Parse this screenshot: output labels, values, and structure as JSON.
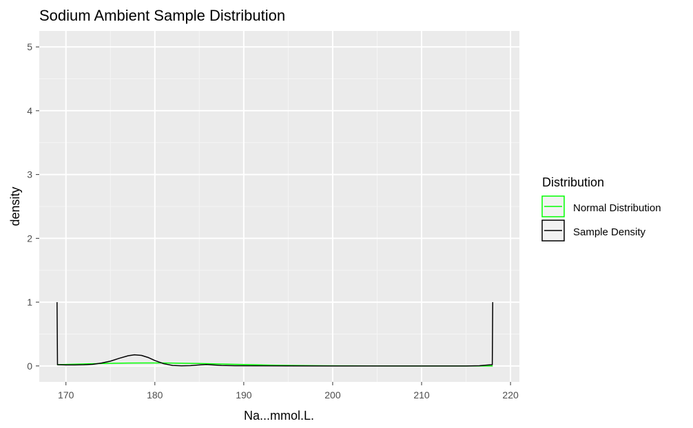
{
  "chart_data": {
    "type": "line",
    "title": "Sodium Ambient Sample Distribution",
    "xlabel": "Na...mmol.L.",
    "ylabel": "density",
    "xlim": [
      167,
      221
    ],
    "ylim": [
      -0.25,
      5.25
    ],
    "x_ticks": [
      170,
      180,
      190,
      200,
      210,
      220
    ],
    "y_ticks": [
      0,
      1,
      2,
      3,
      4,
      5
    ],
    "grid": true,
    "background": "#ebebeb",
    "legend": {
      "title": "Distribution",
      "position": "right",
      "entries": [
        {
          "label": "Normal Distribution",
          "color": "#00ff00"
        },
        {
          "label": "Sample Density",
          "color": "#000000"
        }
      ]
    },
    "series": [
      {
        "name": "Normal Distribution",
        "color": "#00ff00",
        "points": [
          [
            169.0,
            0.02
          ],
          [
            171.0,
            0.028
          ],
          [
            173.0,
            0.035
          ],
          [
            175.0,
            0.041
          ],
          [
            177.0,
            0.045
          ],
          [
            179.0,
            0.047
          ],
          [
            181.0,
            0.046
          ],
          [
            183.0,
            0.043
          ],
          [
            185.0,
            0.038
          ],
          [
            187.0,
            0.032
          ],
          [
            189.0,
            0.025
          ],
          [
            191.0,
            0.019
          ],
          [
            193.0,
            0.013
          ],
          [
            195.0,
            0.009
          ],
          [
            197.0,
            0.006
          ],
          [
            199.0,
            0.003
          ],
          [
            201.0,
            0.002
          ],
          [
            204.0,
            0.001
          ],
          [
            208.0,
            0.0
          ],
          [
            218.0,
            0.0
          ]
        ]
      },
      {
        "name": "Sample Density",
        "color": "#000000",
        "points": [
          [
            169.0,
            1.0
          ],
          [
            169.05,
            0.02
          ],
          [
            170.0,
            0.015
          ],
          [
            171.0,
            0.015
          ],
          [
            172.0,
            0.018
          ],
          [
            173.0,
            0.025
          ],
          [
            174.0,
            0.045
          ],
          [
            175.0,
            0.075
          ],
          [
            176.0,
            0.12
          ],
          [
            177.0,
            0.16
          ],
          [
            177.7,
            0.175
          ],
          [
            178.5,
            0.165
          ],
          [
            179.3,
            0.13
          ],
          [
            180.0,
            0.085
          ],
          [
            181.0,
            0.035
          ],
          [
            182.0,
            0.008
          ],
          [
            183.0,
            0.002
          ],
          [
            184.0,
            0.005
          ],
          [
            185.0,
            0.015
          ],
          [
            185.8,
            0.022
          ],
          [
            186.5,
            0.015
          ],
          [
            187.5,
            0.008
          ],
          [
            189.0,
            0.004
          ],
          [
            192.0,
            0.002
          ],
          [
            195.0,
            0.001
          ],
          [
            200.0,
            0.0
          ],
          [
            205.0,
            0.0
          ],
          [
            210.0,
            0.0
          ],
          [
            215.0,
            0.0
          ],
          [
            216.5,
            0.003
          ],
          [
            217.5,
            0.015
          ],
          [
            217.95,
            0.02
          ],
          [
            218.0,
            1.0
          ]
        ]
      }
    ]
  }
}
